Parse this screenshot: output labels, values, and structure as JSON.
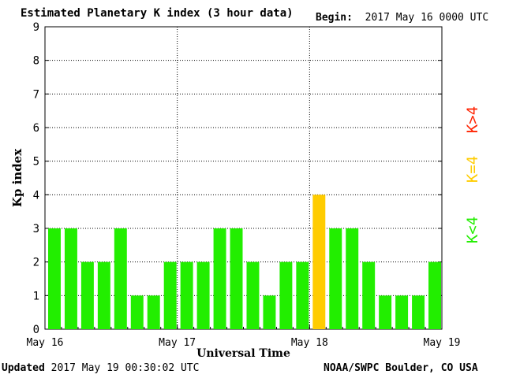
{
  "header": {
    "title": "Estimated Planetary K index (3 hour data)",
    "begin_label": "Begin:",
    "begin_value": "2017 May 16 0000 UTC"
  },
  "footer": {
    "updated_label": "Updated",
    "updated_value": "2017 May 19 00:30:02 UTC",
    "credit": "NOAA/SWPC Boulder, CO USA"
  },
  "legend": {
    "high": "K>4",
    "equal": "K=4",
    "low": "K<4"
  },
  "colors": {
    "low": "#22ee00",
    "equal": "#ffcc00",
    "high": "#ff2200"
  },
  "chart_data": {
    "type": "bar",
    "title": "Estimated Planetary K index (3 hour data)",
    "xlabel": "Universal Time",
    "ylabel": "Kp index",
    "ylim": [
      0,
      9
    ],
    "yticks": [
      "0",
      "1",
      "2",
      "3",
      "4",
      "5",
      "6",
      "7",
      "8",
      "9"
    ],
    "xticks": [
      "May 16",
      "May 17",
      "May 18",
      "May 19"
    ],
    "grid": true,
    "interval_hours": 3,
    "values": [
      3,
      3,
      2,
      2,
      3,
      1,
      1,
      2,
      2,
      2,
      3,
      3,
      2,
      1,
      2,
      2,
      4,
      3,
      3,
      2,
      1,
      1,
      1,
      2
    ]
  }
}
